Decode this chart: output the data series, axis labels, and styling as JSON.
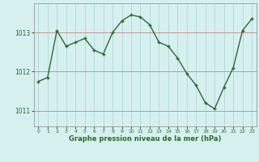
{
  "x": [
    0,
    1,
    2,
    3,
    4,
    5,
    6,
    7,
    8,
    9,
    10,
    11,
    12,
    13,
    14,
    15,
    16,
    17,
    18,
    19,
    20,
    21,
    22,
    23
  ],
  "y": [
    1011.75,
    1011.85,
    1013.05,
    1012.65,
    1012.75,
    1012.85,
    1012.55,
    1012.45,
    1013.0,
    1013.3,
    1013.45,
    1013.4,
    1013.2,
    1012.75,
    1012.65,
    1012.35,
    1011.95,
    1011.65,
    1011.2,
    1011.05,
    1011.6,
    1012.1,
    1013.05,
    1013.35
  ],
  "line_color": "#2d6a2d",
  "marker": "+",
  "bg_color": "#d6f0f0",
  "grid_color": "#aed8d8",
  "xlabel": "Graphe pression niveau de la mer (hPa)",
  "xlabel_color": "#2d6a2d",
  "tick_color": "#2d6a2d",
  "yticks": [
    1011,
    1012,
    1013
  ],
  "ylim": [
    1010.6,
    1013.75
  ],
  "xlim": [
    -0.5,
    23.5
  ],
  "xtick_labels": [
    "0",
    "1",
    "2",
    "3",
    "4",
    "5",
    "6",
    "7",
    "8",
    "9",
    "10",
    "11",
    "12",
    "13",
    "14",
    "15",
    "16",
    "17",
    "18",
    "19",
    "20",
    "21",
    "22",
    "23"
  ],
  "ylabel_fontsize": 5.5,
  "xlabel_fontsize": 6.0,
  "xtick_fontsize": 4.5,
  "linewidth": 1.0,
  "markersize": 3.5,
  "red_hline_color": "#e06060",
  "red_hline_alpha": 0.6
}
